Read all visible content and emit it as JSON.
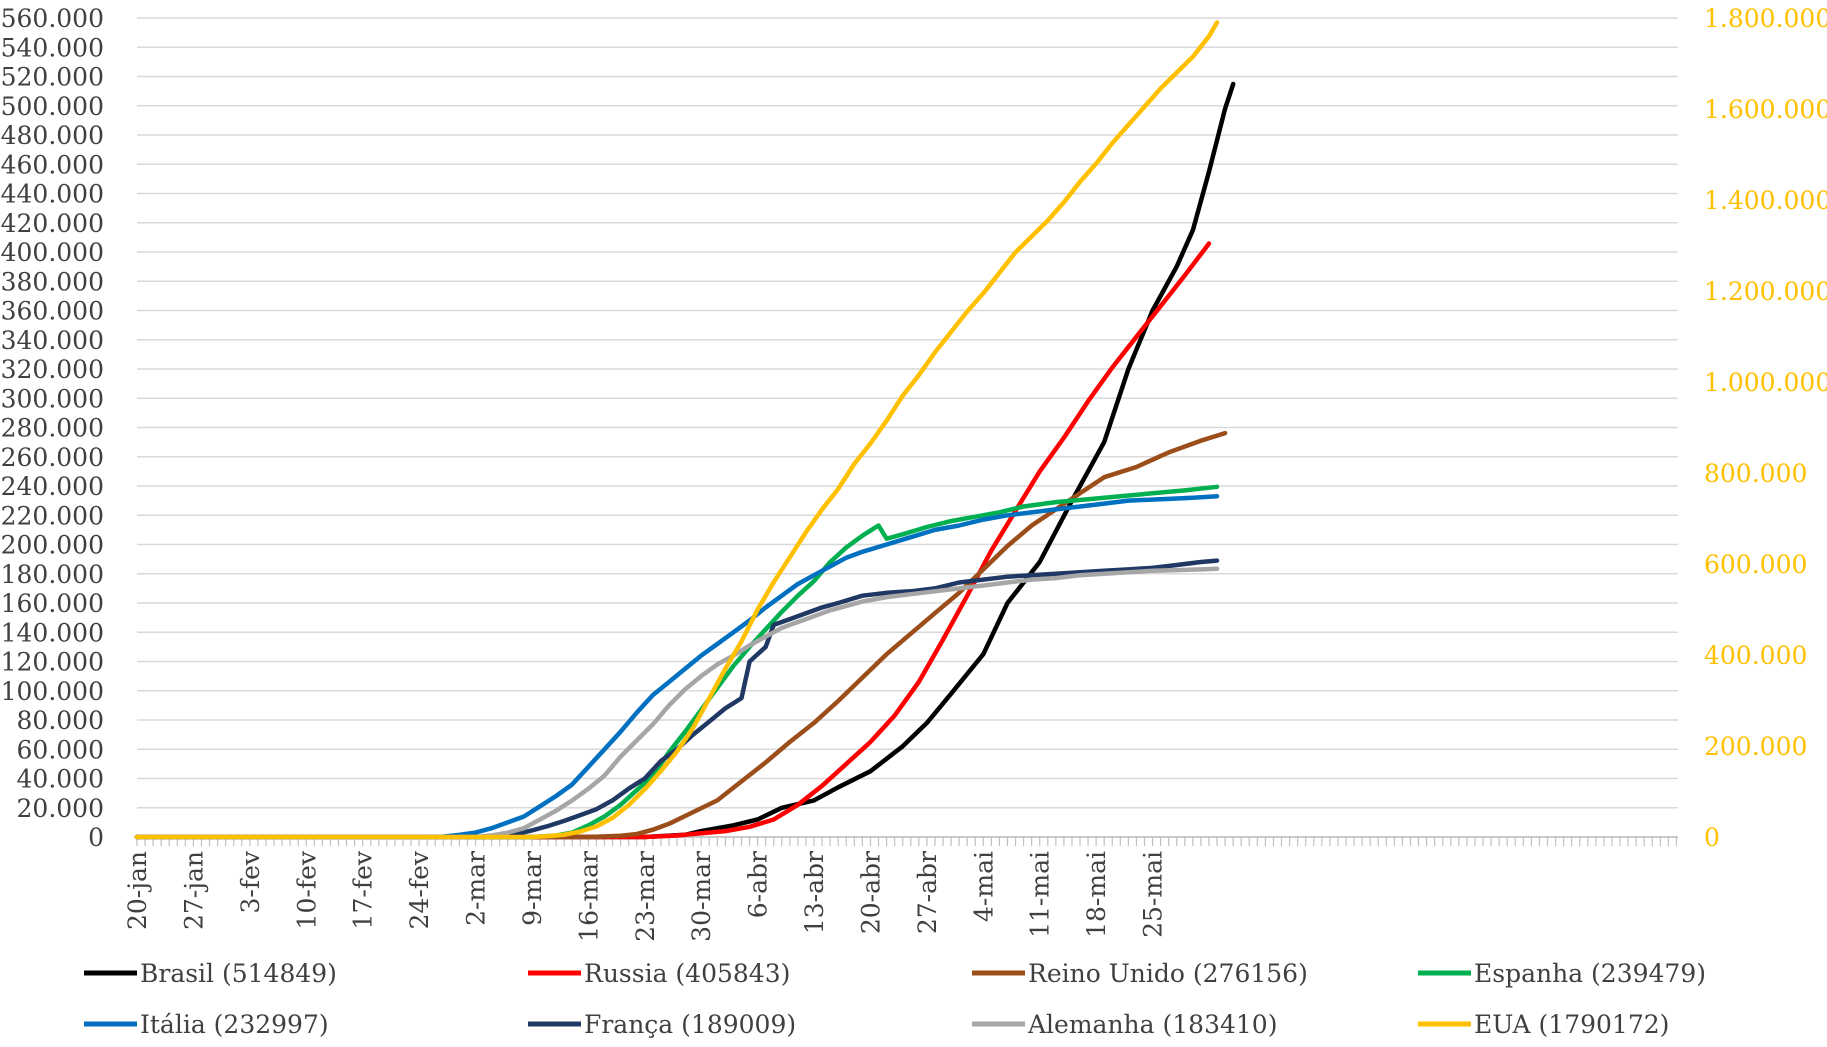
{
  "chart_data": {
    "type": "line",
    "title": "",
    "xlabel": "",
    "ylabel": "",
    "y_left": {
      "range": [
        0,
        560000
      ],
      "tick_labels": [
        "0",
        "20.000",
        "40.000",
        "60.000",
        "80.000",
        "100.000",
        "120.000",
        "140.000",
        "160.000",
        "180.000",
        "200.000",
        "220.000",
        "240.000",
        "260.000",
        "280.000",
        "300.000",
        "320.000",
        "340.000",
        "360.000",
        "380.000",
        "400.000",
        "420.000",
        "440.000",
        "460.000",
        "480.000",
        "500.000",
        "520.000",
        "540.000",
        "560.000"
      ],
      "color": "#404040"
    },
    "y_right": {
      "range": [
        0,
        1800000
      ],
      "tick_labels": [
        "0",
        "200.000",
        "400.000",
        "600.000",
        "800.000",
        "1.000.000",
        "1.200.000",
        "1.400.000",
        "1.600.000",
        "1.800.000"
      ],
      "color": "#FFC000"
    },
    "x_tick_labels": [
      "20-jan",
      "27-jan",
      "3-fev",
      "10-fev",
      "17-fev",
      "24-fev",
      "2-mar",
      "9-mar",
      "16-mar",
      "23-mar",
      "30-mar",
      "6-abr",
      "13-abr",
      "20-abr",
      "27-abr",
      "4-mai",
      "11-mai",
      "18-mai",
      "25-mai"
    ],
    "x_range_days": [
      0,
      132
    ],
    "grid": true,
    "legend_position": "bottom",
    "series": [
      {
        "name": "Brasil (514849)",
        "color": "#000000",
        "axis": "left",
        "points": [
          [
            0,
            0
          ],
          [
            35,
            0
          ],
          [
            42,
            0
          ],
          [
            49,
            0
          ],
          [
            56,
            0
          ],
          [
            63,
            0
          ],
          [
            68,
            1500
          ],
          [
            70,
            4000
          ],
          [
            74,
            8000
          ],
          [
            77,
            12000
          ],
          [
            80,
            20000
          ],
          [
            84,
            25000
          ],
          [
            87,
            34000
          ],
          [
            91,
            45000
          ],
          [
            95,
            62000
          ],
          [
            98,
            78000
          ],
          [
            101,
            98000
          ],
          [
            105,
            125000
          ],
          [
            108,
            160000
          ],
          [
            112,
            188000
          ],
          [
            116,
            230000
          ],
          [
            120,
            270000
          ],
          [
            123,
            320000
          ],
          [
            126,
            360000
          ],
          [
            129,
            390000
          ],
          [
            131,
            415000
          ],
          [
            133,
            455000
          ],
          [
            135,
            498000
          ],
          [
            136,
            514849
          ]
        ]
      },
      {
        "name": "Russia (405843)",
        "color": "#FF0000",
        "axis": "left",
        "points": [
          [
            0,
            0
          ],
          [
            49,
            0
          ],
          [
            56,
            0
          ],
          [
            63,
            0
          ],
          [
            67,
            1000
          ],
          [
            70,
            2500
          ],
          [
            73,
            4000
          ],
          [
            76,
            7000
          ],
          [
            79,
            12000
          ],
          [
            82,
            22000
          ],
          [
            85,
            35000
          ],
          [
            88,
            50000
          ],
          [
            91,
            65000
          ],
          [
            94,
            83000
          ],
          [
            97,
            106000
          ],
          [
            100,
            135000
          ],
          [
            103,
            165000
          ],
          [
            106,
            196000
          ],
          [
            109,
            223000
          ],
          [
            112,
            250000
          ],
          [
            115,
            273000
          ],
          [
            118,
            298000
          ],
          [
            121,
            321000
          ],
          [
            124,
            342000
          ],
          [
            127,
            363000
          ],
          [
            130,
            384000
          ],
          [
            133,
            405843
          ]
        ]
      },
      {
        "name": "Reino Unido (276156)",
        "color": "#9C4E1A",
        "axis": "left",
        "points": [
          [
            0,
            0
          ],
          [
            56,
            0
          ],
          [
            60,
            800
          ],
          [
            62,
            2000
          ],
          [
            64,
            5000
          ],
          [
            66,
            9000
          ],
          [
            69,
            17000
          ],
          [
            72,
            25000
          ],
          [
            75,
            38000
          ],
          [
            78,
            51000
          ],
          [
            81,
            65000
          ],
          [
            84,
            78000
          ],
          [
            87,
            93000
          ],
          [
            90,
            109000
          ],
          [
            93,
            125000
          ],
          [
            96,
            139000
          ],
          [
            99,
            153000
          ],
          [
            102,
            167000
          ],
          [
            105,
            183000
          ],
          [
            108,
            199000
          ],
          [
            111,
            213000
          ],
          [
            114,
            224000
          ],
          [
            117,
            235000
          ],
          [
            120,
            246000
          ],
          [
            124,
            253000
          ],
          [
            128,
            263000
          ],
          [
            132,
            271000
          ],
          [
            135,
            276156
          ]
        ]
      },
      {
        "name": "Espanha (239479)",
        "color": "#00B050",
        "axis": "left",
        "points": [
          [
            0,
            0
          ],
          [
            49,
            0
          ],
          [
            52,
            1000
          ],
          [
            54,
            3000
          ],
          [
            56,
            8000
          ],
          [
            58,
            14000
          ],
          [
            60,
            22000
          ],
          [
            62,
            32000
          ],
          [
            64,
            42000
          ],
          [
            66,
            58000
          ],
          [
            68,
            72000
          ],
          [
            70,
            87000
          ],
          [
            72,
            102000
          ],
          [
            74,
            117000
          ],
          [
            76,
            130000
          ],
          [
            78,
            142000
          ],
          [
            80,
            154000
          ],
          [
            82,
            165000
          ],
          [
            84,
            175000
          ],
          [
            86,
            188000
          ],
          [
            88,
            198000
          ],
          [
            90,
            206000
          ],
          [
            92,
            213000
          ],
          [
            93,
            204000
          ],
          [
            95,
            207000
          ],
          [
            98,
            212000
          ],
          [
            101,
            216000
          ],
          [
            104,
            219000
          ],
          [
            107,
            222000
          ],
          [
            110,
            226000
          ],
          [
            114,
            229000
          ],
          [
            118,
            231000
          ],
          [
            122,
            233000
          ],
          [
            126,
            235000
          ],
          [
            130,
            237000
          ],
          [
            134,
            239479
          ]
        ]
      },
      {
        "name": "Itália (232997)",
        "color": "#0070C0",
        "axis": "left",
        "points": [
          [
            0,
            0
          ],
          [
            35,
            0
          ],
          [
            38,
            300
          ],
          [
            40,
            1500
          ],
          [
            42,
            3000
          ],
          [
            44,
            6000
          ],
          [
            46,
            10000
          ],
          [
            48,
            14000
          ],
          [
            50,
            21000
          ],
          [
            52,
            28000
          ],
          [
            54,
            36000
          ],
          [
            56,
            48000
          ],
          [
            58,
            60000
          ],
          [
            60,
            72000
          ],
          [
            62,
            85000
          ],
          [
            64,
            97000
          ],
          [
            66,
            106000
          ],
          [
            68,
            115000
          ],
          [
            70,
            124000
          ],
          [
            72,
            132000
          ],
          [
            74,
            140000
          ],
          [
            76,
            148000
          ],
          [
            78,
            157000
          ],
          [
            80,
            165000
          ],
          [
            82,
            173000
          ],
          [
            84,
            179000
          ],
          [
            86,
            185000
          ],
          [
            88,
            191000
          ],
          [
            90,
            195000
          ],
          [
            93,
            200000
          ],
          [
            96,
            205000
          ],
          [
            99,
            210000
          ],
          [
            102,
            213000
          ],
          [
            105,
            217000
          ],
          [
            108,
            220000
          ],
          [
            111,
            222000
          ],
          [
            114,
            224000
          ],
          [
            117,
            226000
          ],
          [
            120,
            228000
          ],
          [
            123,
            230000
          ],
          [
            127,
            231000
          ],
          [
            131,
            232000
          ],
          [
            134,
            232997
          ]
        ]
      },
      {
        "name": "França (189009)",
        "color": "#203864",
        "axis": "left",
        "points": [
          [
            0,
            0
          ],
          [
            42,
            0
          ],
          [
            45,
            800
          ],
          [
            47,
            2000
          ],
          [
            49,
            4500
          ],
          [
            51,
            7500
          ],
          [
            53,
            11000
          ],
          [
            55,
            15000
          ],
          [
            57,
            19000
          ],
          [
            59,
            25000
          ],
          [
            61,
            33000
          ],
          [
            63,
            40000
          ],
          [
            65,
            52000
          ],
          [
            67,
            60000
          ],
          [
            69,
            70000
          ],
          [
            71,
            79000
          ],
          [
            73,
            88000
          ],
          [
            75,
            95000
          ],
          [
            76,
            120000
          ],
          [
            78,
            130000
          ],
          [
            79,
            145000
          ],
          [
            81,
            149000
          ],
          [
            83,
            153000
          ],
          [
            85,
            157000
          ],
          [
            87,
            160000
          ],
          [
            90,
            165000
          ],
          [
            93,
            167000
          ],
          [
            96,
            168000
          ],
          [
            99,
            170000
          ],
          [
            102,
            174000
          ],
          [
            105,
            176000
          ],
          [
            108,
            178000
          ],
          [
            111,
            179000
          ],
          [
            114,
            180000
          ],
          [
            117,
            181000
          ],
          [
            120,
            182000
          ],
          [
            123,
            183000
          ],
          [
            126,
            184000
          ],
          [
            129,
            186000
          ],
          [
            132,
            188000
          ],
          [
            134,
            189009
          ]
        ]
      },
      {
        "name": "Alemanha (183410)",
        "color": "#A6A6A6",
        "axis": "left",
        "points": [
          [
            0,
            0
          ],
          [
            42,
            0
          ],
          [
            44,
            1000
          ],
          [
            46,
            3000
          ],
          [
            48,
            6000
          ],
          [
            50,
            12000
          ],
          [
            52,
            18000
          ],
          [
            54,
            25000
          ],
          [
            56,
            33000
          ],
          [
            58,
            42000
          ],
          [
            60,
            55000
          ],
          [
            62,
            66000
          ],
          [
            64,
            77000
          ],
          [
            66,
            90000
          ],
          [
            68,
            101000
          ],
          [
            70,
            110000
          ],
          [
            72,
            118000
          ],
          [
            74,
            124000
          ],
          [
            76,
            131000
          ],
          [
            78,
            137000
          ],
          [
            80,
            143000
          ],
          [
            82,
            147000
          ],
          [
            84,
            151000
          ],
          [
            86,
            155000
          ],
          [
            88,
            158000
          ],
          [
            90,
            161000
          ],
          [
            93,
            164000
          ],
          [
            96,
            166000
          ],
          [
            99,
            168000
          ],
          [
            102,
            170000
          ],
          [
            105,
            172000
          ],
          [
            108,
            174000
          ],
          [
            111,
            176000
          ],
          [
            114,
            177000
          ],
          [
            117,
            179000
          ],
          [
            120,
            180000
          ],
          [
            123,
            181000
          ],
          [
            126,
            182000
          ],
          [
            129,
            182500
          ],
          [
            132,
            183000
          ],
          [
            134,
            183410
          ]
        ]
      },
      {
        "name": "EUA (1790172)",
        "color": "#FFC000",
        "axis": "right",
        "points": [
          [
            0,
            0
          ],
          [
            49,
            0
          ],
          [
            51,
            2000
          ],
          [
            53,
            5000
          ],
          [
            55,
            12000
          ],
          [
            57,
            23000
          ],
          [
            59,
            42000
          ],
          [
            61,
            70000
          ],
          [
            63,
            105000
          ],
          [
            65,
            145000
          ],
          [
            67,
            188000
          ],
          [
            69,
            240000
          ],
          [
            71,
            305000
          ],
          [
            73,
            370000
          ],
          [
            75,
            430000
          ],
          [
            77,
            500000
          ],
          [
            79,
            560000
          ],
          [
            81,
            615000
          ],
          [
            83,
            670000
          ],
          [
            85,
            720000
          ],
          [
            87,
            765000
          ],
          [
            89,
            820000
          ],
          [
            91,
            865000
          ],
          [
            93,
            915000
          ],
          [
            95,
            970000
          ],
          [
            97,
            1015000
          ],
          [
            99,
            1065000
          ],
          [
            101,
            1110000
          ],
          [
            103,
            1155000
          ],
          [
            105,
            1195000
          ],
          [
            107,
            1240000
          ],
          [
            109,
            1285000
          ],
          [
            111,
            1320000
          ],
          [
            113,
            1355000
          ],
          [
            115,
            1395000
          ],
          [
            117,
            1440000
          ],
          [
            119,
            1480000
          ],
          [
            121,
            1525000
          ],
          [
            123,
            1565000
          ],
          [
            125,
            1605000
          ],
          [
            127,
            1645000
          ],
          [
            129,
            1680000
          ],
          [
            131,
            1715000
          ],
          [
            133,
            1760000
          ],
          [
            134,
            1790172
          ]
        ]
      }
    ]
  }
}
